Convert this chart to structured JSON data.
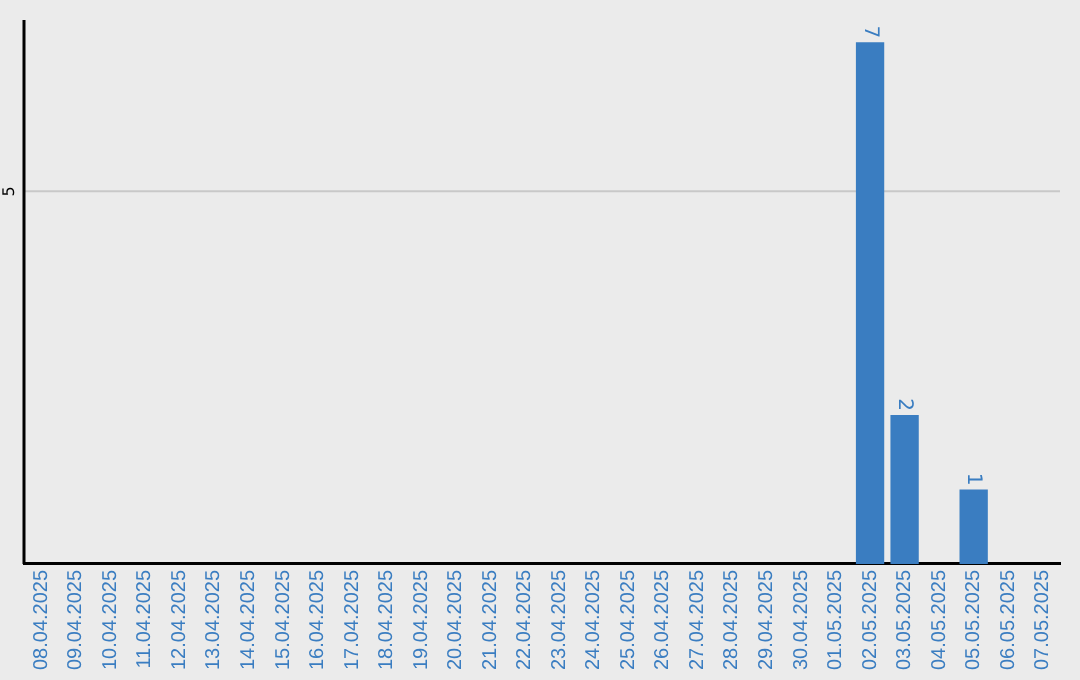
{
  "chart_data": {
    "type": "bar",
    "categories": [
      "08.04.2025",
      "09.04.2025",
      "10.04.2025",
      "11.04.2025",
      "12.04.2025",
      "13.04.2025",
      "14.04.2025",
      "15.04.2025",
      "16.04.2025",
      "17.04.2025",
      "18.04.2025",
      "19.04.2025",
      "20.04.2025",
      "21.04.2025",
      "22.04.2025",
      "23.04.2025",
      "24.04.2025",
      "25.04.2025",
      "26.04.2025",
      "27.04.2025",
      "28.04.2025",
      "29.04.2025",
      "30.04.2025",
      "01.05.2025",
      "02.05.2025",
      "03.05.2025",
      "04.05.2025",
      "05.05.2025",
      "06.05.2025",
      "07.05.2025"
    ],
    "values": [
      null,
      null,
      null,
      null,
      null,
      null,
      null,
      null,
      null,
      null,
      null,
      null,
      null,
      null,
      null,
      null,
      null,
      null,
      null,
      null,
      null,
      null,
      null,
      null,
      7,
      2,
      null,
      1,
      null,
      null
    ],
    "value_labels": [
      null,
      null,
      null,
      null,
      null,
      null,
      null,
      null,
      null,
      null,
      null,
      null,
      null,
      null,
      null,
      null,
      null,
      null,
      null,
      null,
      null,
      null,
      null,
      null,
      "7",
      "2",
      null,
      "1",
      null,
      null
    ],
    "color": "#3a7dc1",
    "ylim": [
      0,
      7.3
    ],
    "tick_labels": "x",
    "ref_lines": [
      {
        "axis": "y",
        "value": 5,
        "label": "5",
        "color": "#c8c8c8"
      }
    ],
    "legend": false
  }
}
